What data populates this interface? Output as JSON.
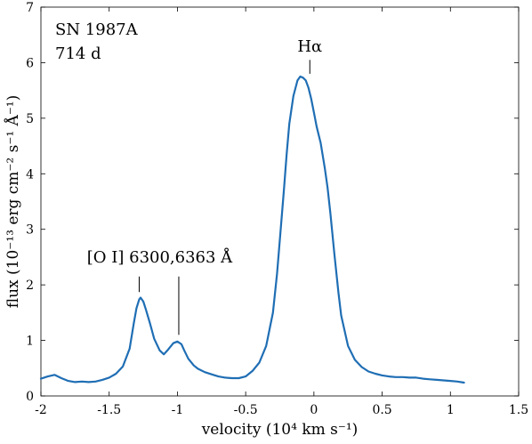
{
  "chart_data": {
    "type": "line",
    "title": "",
    "annotation_text": [
      "SN 1987A",
      "714 d"
    ],
    "xlabel": "velocity (10⁴ km s⁻¹)",
    "ylabel": "flux (10⁻¹³ erg cm⁻² s⁻¹ Å⁻¹)",
    "xlim": [
      -2,
      1.5
    ],
    "ylim": [
      0,
      7
    ],
    "xticks": [
      -2,
      -1.5,
      -1,
      -0.5,
      0,
      0.5,
      1,
      1.5
    ],
    "xtick_labels": [
      "-2",
      "-1.5",
      "-1",
      "-0.5",
      "0",
      "0.5",
      "1",
      "1.5"
    ],
    "yticks": [
      0,
      1,
      2,
      3,
      4,
      5,
      6,
      7
    ],
    "ytick_labels": [
      "0",
      "1",
      "2",
      "3",
      "4",
      "5",
      "6",
      "7"
    ],
    "grid": false,
    "line_color": "#1f6eb4",
    "series": [
      {
        "x": [
          -2.0,
          -1.95,
          -1.9,
          -1.85,
          -1.8,
          -1.75,
          -1.7,
          -1.65,
          -1.6,
          -1.55,
          -1.5,
          -1.45,
          -1.4,
          -1.35,
          -1.32,
          -1.3,
          -1.28,
          -1.27,
          -1.25,
          -1.23,
          -1.2,
          -1.17,
          -1.13,
          -1.1,
          -1.07,
          -1.03,
          -1.0,
          -0.97,
          -0.95,
          -0.92,
          -0.88,
          -0.85,
          -0.8,
          -0.75,
          -0.7,
          -0.65,
          -0.6,
          -0.55,
          -0.5,
          -0.45,
          -0.4,
          -0.35,
          -0.3,
          -0.27,
          -0.25,
          -0.22,
          -0.2,
          -0.18,
          -0.15,
          -0.12,
          -0.1,
          -0.08,
          -0.06,
          -0.04,
          -0.02,
          0.0,
          0.02,
          0.05,
          0.08,
          0.1,
          0.12,
          0.15,
          0.18,
          0.2,
          0.25,
          0.3,
          0.35,
          0.4,
          0.45,
          0.5,
          0.55,
          0.6,
          0.65,
          0.7,
          0.75,
          0.8,
          0.85,
          0.9,
          0.95,
          1.0,
          1.05,
          1.1
        ],
        "y": [
          0.31,
          0.35,
          0.38,
          0.32,
          0.27,
          0.25,
          0.26,
          0.25,
          0.26,
          0.29,
          0.33,
          0.4,
          0.53,
          0.85,
          1.3,
          1.58,
          1.74,
          1.77,
          1.7,
          1.55,
          1.3,
          1.03,
          0.82,
          0.75,
          0.83,
          0.95,
          0.98,
          0.93,
          0.82,
          0.67,
          0.55,
          0.49,
          0.43,
          0.39,
          0.35,
          0.33,
          0.32,
          0.32,
          0.35,
          0.45,
          0.6,
          0.9,
          1.5,
          2.2,
          2.8,
          3.7,
          4.35,
          4.9,
          5.4,
          5.68,
          5.75,
          5.73,
          5.68,
          5.55,
          5.35,
          5.1,
          4.85,
          4.55,
          4.1,
          3.75,
          3.3,
          2.55,
          1.85,
          1.45,
          0.9,
          0.65,
          0.52,
          0.44,
          0.4,
          0.37,
          0.35,
          0.34,
          0.34,
          0.33,
          0.33,
          0.31,
          0.3,
          0.29,
          0.28,
          0.27,
          0.26,
          0.24
        ]
      }
    ],
    "annotations": [
      {
        "text": "Hα",
        "x": -0.03,
        "y": 6.2,
        "marker_x": -0.03,
        "marker_y_top": 6.05,
        "marker_y_bottom": 5.8
      },
      {
        "text": "[O I] 6300,6363 Å",
        "x": -1.13,
        "y": 2.4,
        "markers": [
          {
            "x": -1.28,
            "y_top": 2.15,
            "y_bottom": 1.87
          },
          {
            "x": -0.99,
            "y_top": 2.15,
            "y_bottom": 1.1
          }
        ]
      }
    ]
  }
}
